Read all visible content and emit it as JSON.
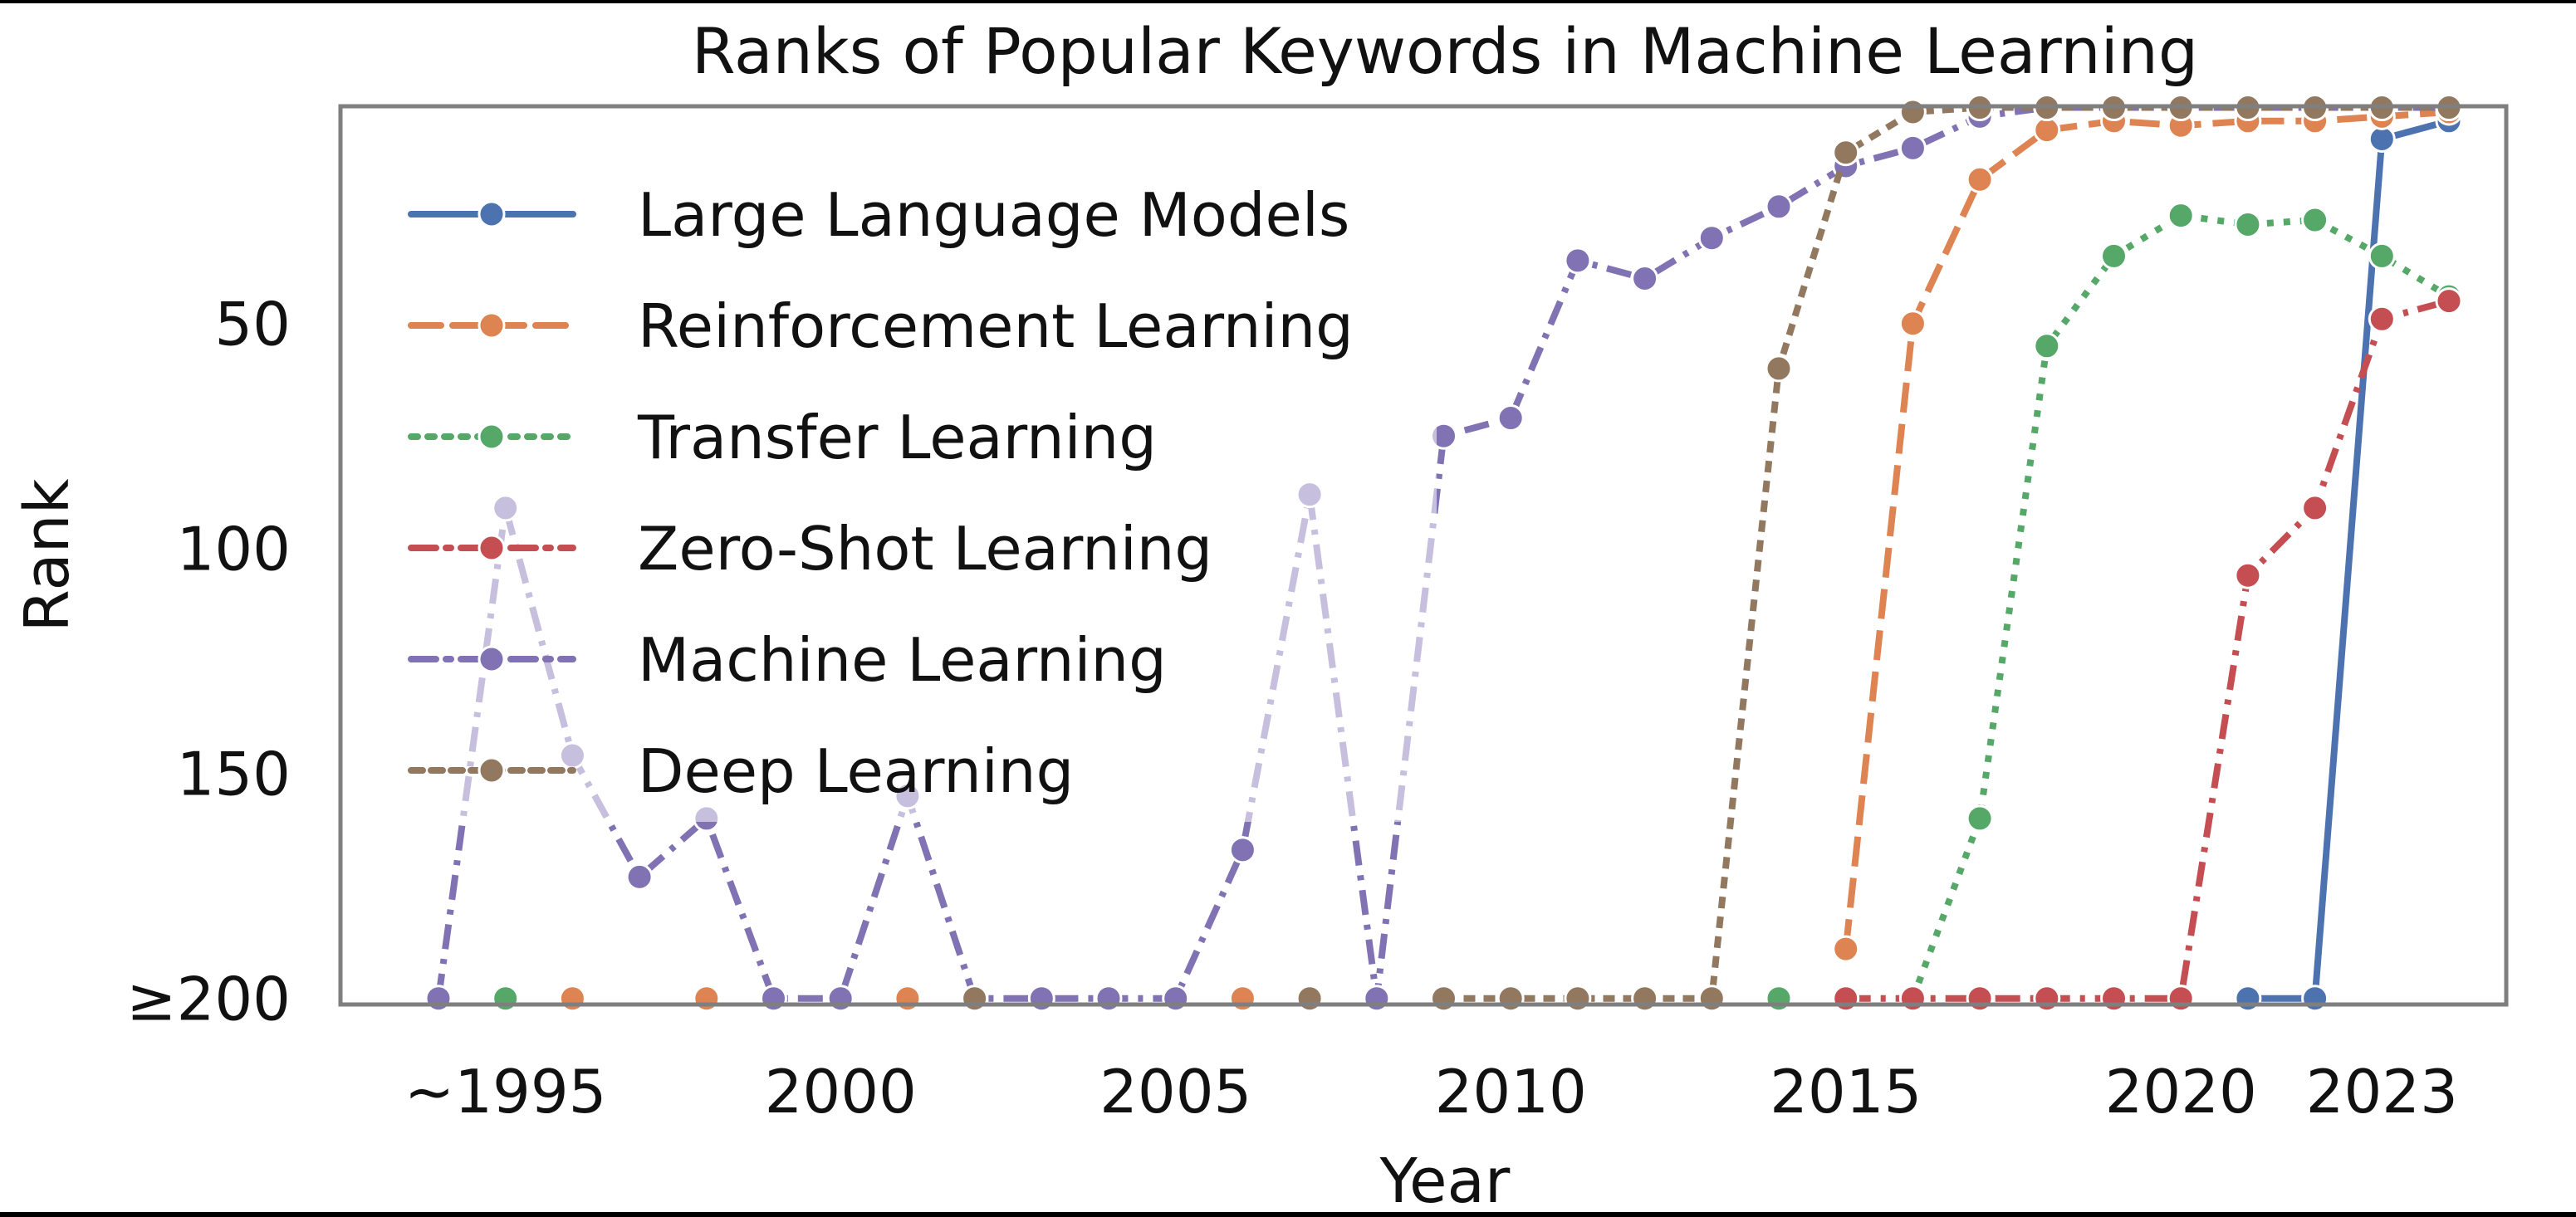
{
  "chart_data": {
    "type": "line",
    "title": "Ranks of Popular Keywords in Machine Learning",
    "xlabel": "Year",
    "ylabel": "Rank",
    "x": [
      1994,
      1995,
      1996,
      1997,
      1998,
      1999,
      2000,
      2001,
      2002,
      2003,
      2004,
      2005,
      2006,
      2007,
      2008,
      2009,
      2010,
      2011,
      2012,
      2013,
      2014,
      2015,
      2016,
      2017,
      2018,
      2019,
      2020,
      2021,
      2022,
      2023,
      2024
    ],
    "xticks": [
      {
        "value": 1995,
        "label": "~1995"
      },
      {
        "value": 2000,
        "label": "2000"
      },
      {
        "value": 2005,
        "label": "2005"
      },
      {
        "value": 2010,
        "label": "2010"
      },
      {
        "value": 2015,
        "label": "2015"
      },
      {
        "value": 2020,
        "label": "2020"
      },
      {
        "value": 2023,
        "label": "2023"
      }
    ],
    "yticks": [
      {
        "value": 50,
        "label": "50"
      },
      {
        "value": 100,
        "label": "100"
      },
      {
        "value": 150,
        "label": "150"
      },
      {
        "value": 200,
        "label": "≥200"
      }
    ],
    "ylim": [
      200,
      2
    ],
    "y_inverted": true,
    "y_floor_note": "values of 200 mean rank ≥200",
    "grid": false,
    "legend_position": "upper left",
    "series": [
      {
        "name": "Large Language Models",
        "color": "#4c72b0",
        "dash": "solid",
        "values": [
          null,
          null,
          null,
          null,
          null,
          null,
          null,
          null,
          null,
          null,
          null,
          null,
          null,
          null,
          null,
          null,
          null,
          null,
          null,
          null,
          null,
          null,
          null,
          null,
          null,
          null,
          null,
          200,
          200,
          9,
          5
        ]
      },
      {
        "name": "Reinforcement Learning",
        "color": "#dd8452",
        "dash": "dashed",
        "values": [
          null,
          null,
          200,
          null,
          200,
          null,
          null,
          200,
          null,
          null,
          null,
          null,
          200,
          null,
          null,
          null,
          null,
          null,
          null,
          null,
          null,
          189,
          50,
          18,
          7,
          5,
          6,
          5,
          5,
          4,
          3
        ]
      },
      {
        "name": "Transfer Learning",
        "color": "#55a868",
        "dash": "dotted",
        "values": [
          null,
          200,
          null,
          null,
          null,
          null,
          null,
          null,
          null,
          null,
          null,
          null,
          null,
          null,
          null,
          null,
          null,
          null,
          null,
          null,
          200,
          null,
          200,
          160,
          55,
          35,
          26,
          28,
          27,
          35,
          44
        ]
      },
      {
        "name": "Zero-Shot Learning",
        "color": "#c44e52",
        "dash": "dashdot",
        "values": [
          null,
          null,
          null,
          null,
          null,
          null,
          null,
          null,
          null,
          null,
          null,
          null,
          null,
          null,
          null,
          null,
          null,
          null,
          null,
          null,
          null,
          200,
          200,
          200,
          200,
          200,
          200,
          106,
          91,
          49,
          45
        ]
      },
      {
        "name": "Machine Learning",
        "color": "#8172b3",
        "dash": "dashdot",
        "values": [
          200,
          91,
          146,
          173,
          160,
          200,
          200,
          155,
          200,
          200,
          200,
          200,
          167,
          88,
          200,
          75,
          71,
          36,
          40,
          31,
          24,
          15,
          11,
          4,
          2,
          2,
          2,
          2,
          2,
          2,
          2
        ]
      },
      {
        "name": "Deep Learning",
        "color": "#937860",
        "dash": "densely-dotted",
        "values": [
          null,
          null,
          null,
          null,
          null,
          null,
          null,
          null,
          200,
          null,
          null,
          null,
          null,
          200,
          null,
          200,
          200,
          200,
          200,
          200,
          60,
          12,
          3,
          2,
          2,
          2,
          2,
          2,
          2,
          2,
          2
        ]
      }
    ]
  },
  "legend": {
    "items": [
      {
        "label": "Large Language Models"
      },
      {
        "label": "Reinforcement Learning"
      },
      {
        "label": "Transfer Learning"
      },
      {
        "label": "Zero-Shot Learning"
      },
      {
        "label": "Machine Learning"
      },
      {
        "label": "Deep Learning"
      }
    ]
  }
}
